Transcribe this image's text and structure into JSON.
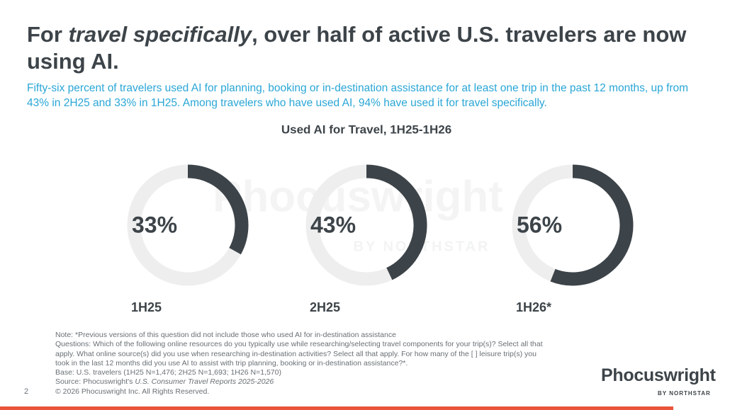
{
  "title": {
    "prefix": "For ",
    "emphasis": "travel specifically",
    "rest": ", over half of active U.S. travelers are now using AI."
  },
  "subtitle": "Fifty-six percent of travelers used AI for planning, booking or in-destination assistance for at least one trip in the past 12 months, up from 43% in 2H25 and 33% in 1H25. Among travelers who have used AI, 94% have used it for travel specifically.",
  "chart_data": {
    "type": "donut",
    "title": "Used AI for Travel, 1H25-1H26",
    "categories": [
      "1H25",
      "2H25",
      "1H26*"
    ],
    "values": [
      33,
      43,
      56
    ],
    "value_labels": [
      "33%",
      "43%",
      "56%"
    ],
    "max": 100,
    "color": "#3d4449",
    "track_color": "#eeeeee"
  },
  "watermark": {
    "name": "Phocuswright",
    "tagline": "BY NORTHSTAR"
  },
  "notes": {
    "note": "Note: *Previous versions of this question did not include those who used AI for in-destination assistance",
    "questions": "Questions: Which of the following online resources do you typically use while researching/selecting travel components for your trip(s)? Select all that apply. What online source(s) did you use when researching in-destination activities? Select all that apply. For how many of the [ ] leisure trip(s) you took in the last 12 months did you use AI to assist with trip planning, booking or in-destination assistance?*.",
    "base": "Base: U.S. travelers (1H25 N=1,476; 2H25 N=1,693; 1H26 N=1,570)",
    "source_prefix": "Source: Phocuswright's ",
    "source_title": "U.S. Consumer Travel Reports 2025-2026",
    "copyright": "© 2026 Phocuswright Inc. All Rights Reserved."
  },
  "page_number": "2",
  "logo": {
    "name": "Phocuswright",
    "tagline": "BY NORTHSTAR"
  }
}
